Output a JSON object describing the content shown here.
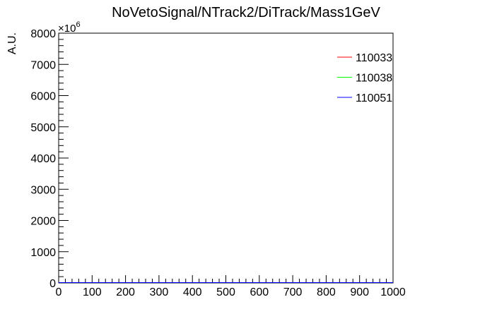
{
  "chart_data": {
    "type": "line",
    "title": "NoVetoSignal/NTrack2/DiTrack/Mass1GeV",
    "xlabel": "",
    "ylabel": "A.U.",
    "y_multiplier_base": "×10",
    "y_multiplier_exponent": "6",
    "xlim": [
      0,
      1000
    ],
    "ylim": [
      0,
      8000
    ],
    "x_ticks": [
      "0",
      "100",
      "200",
      "300",
      "400",
      "500",
      "600",
      "700",
      "800",
      "900",
      "1000"
    ],
    "y_ticks": [
      "0",
      "1000",
      "2000",
      "3000",
      "4000",
      "5000",
      "6000",
      "7000",
      "8000"
    ],
    "legend_position": "top-right",
    "series": [
      {
        "name": "110033",
        "color": "#ff0000",
        "x": [
          0,
          1000
        ],
        "y": [
          0,
          0
        ]
      },
      {
        "name": "110038",
        "color": "#00ff00",
        "x": [
          0,
          1000
        ],
        "y": [
          0,
          0
        ]
      },
      {
        "name": "110051",
        "color": "#0000ff",
        "x": [
          0,
          1000
        ],
        "y": [
          0,
          0
        ]
      }
    ]
  }
}
